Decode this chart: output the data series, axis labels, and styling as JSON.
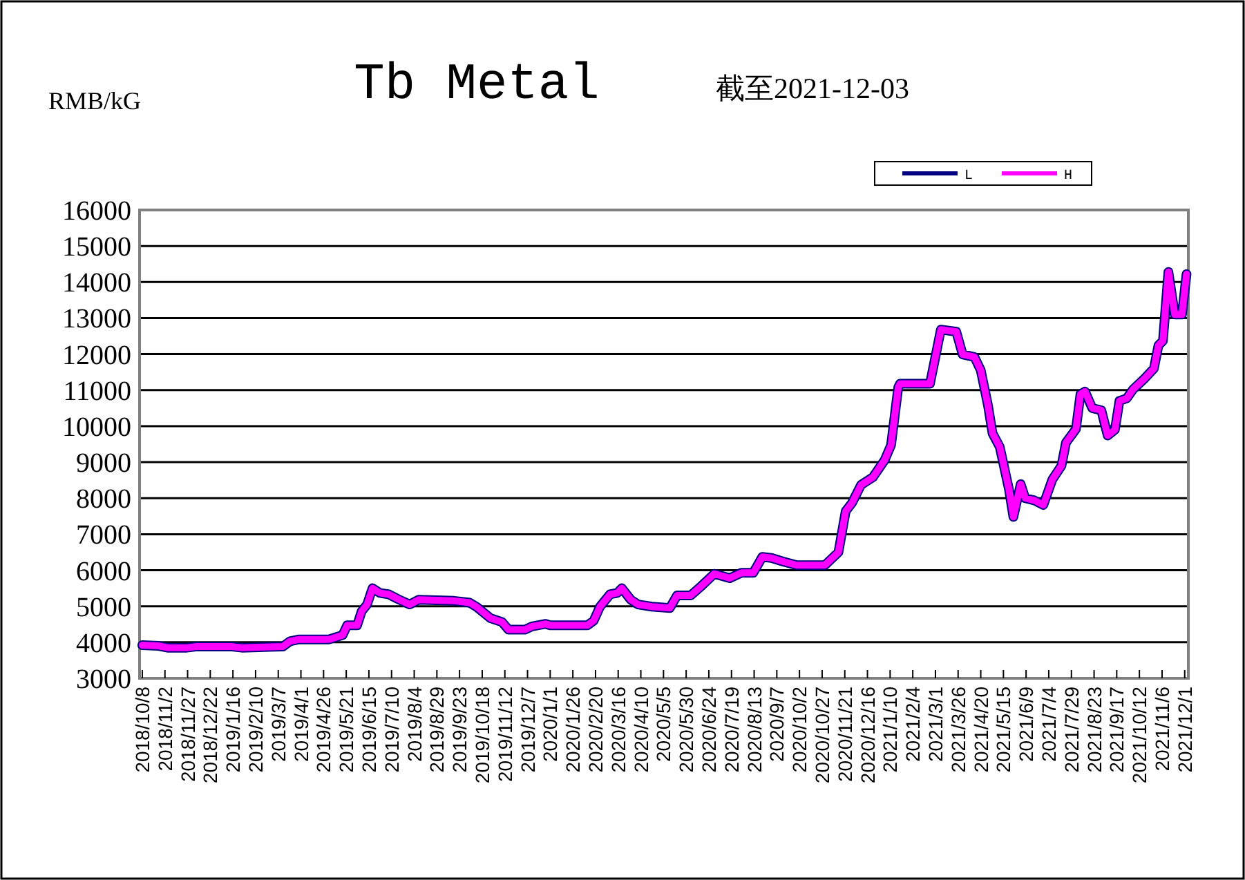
{
  "chart_data": {
    "type": "line",
    "title": "Tb Metal",
    "subtitle": "截至2021-12-03",
    "ylabel": "RMB/kG",
    "xlim": [
      "2018-10-05",
      "2021-12-05"
    ],
    "ylim": [
      3000,
      16000
    ],
    "yticks": [
      3000,
      4000,
      5000,
      6000,
      7000,
      8000,
      9000,
      10000,
      11000,
      12000,
      13000,
      14000,
      15000,
      16000
    ],
    "xticks": [
      {
        "value": "2018-10-08",
        "label": "2018/10/8"
      },
      {
        "value": "2018-11-02",
        "label": "2018/11/2"
      },
      {
        "value": "2018-11-27",
        "label": "2018/11/27"
      },
      {
        "value": "2018-12-22",
        "label": "2018/12/22"
      },
      {
        "value": "2019-01-16",
        "label": "2019/1/16"
      },
      {
        "value": "2019-02-10",
        "label": "2019/2/10"
      },
      {
        "value": "2019-03-07",
        "label": "2019/3/7"
      },
      {
        "value": "2019-04-01",
        "label": "2019/4/1"
      },
      {
        "value": "2019-04-26",
        "label": "2019/4/26"
      },
      {
        "value": "2019-05-21",
        "label": "2019/5/21"
      },
      {
        "value": "2019-06-15",
        "label": "2019/6/15"
      },
      {
        "value": "2019-07-10",
        "label": "2019/7/10"
      },
      {
        "value": "2019-08-04",
        "label": "2019/8/4"
      },
      {
        "value": "2019-08-29",
        "label": "2019/8/29"
      },
      {
        "value": "2019-09-23",
        "label": "2019/9/23"
      },
      {
        "value": "2019-10-18",
        "label": "2019/10/18"
      },
      {
        "value": "2019-11-12",
        "label": "2019/11/12"
      },
      {
        "value": "2019-12-07",
        "label": "2019/12/7"
      },
      {
        "value": "2020-01-01",
        "label": "2020/1/1"
      },
      {
        "value": "2020-01-26",
        "label": "2020/1/26"
      },
      {
        "value": "2020-02-20",
        "label": "2020/2/20"
      },
      {
        "value": "2020-03-16",
        "label": "2020/3/16"
      },
      {
        "value": "2020-04-10",
        "label": "2020/4/10"
      },
      {
        "value": "2020-05-05",
        "label": "2020/5/5"
      },
      {
        "value": "2020-05-30",
        "label": "2020/5/30"
      },
      {
        "value": "2020-06-24",
        "label": "2020/6/24"
      },
      {
        "value": "2020-07-19",
        "label": "2020/7/19"
      },
      {
        "value": "2020-08-13",
        "label": "2020/8/13"
      },
      {
        "value": "2020-09-07",
        "label": "2020/9/7"
      },
      {
        "value": "2020-10-02",
        "label": "2020/10/2"
      },
      {
        "value": "2020-10-27",
        "label": "2020/10/27"
      },
      {
        "value": "2020-11-21",
        "label": "2020/11/21"
      },
      {
        "value": "2020-12-16",
        "label": "2020/12/16"
      },
      {
        "value": "2021-01-10",
        "label": "2021/1/10"
      },
      {
        "value": "2021-02-04",
        "label": "2021/2/4"
      },
      {
        "value": "2021-03-01",
        "label": "2021/3/1"
      },
      {
        "value": "2021-03-26",
        "label": "2021/3/26"
      },
      {
        "value": "2021-04-20",
        "label": "2021/4/20"
      },
      {
        "value": "2021-05-15",
        "label": "2021/5/15"
      },
      {
        "value": "2021-06-09",
        "label": "2021/6/9"
      },
      {
        "value": "2021-07-04",
        "label": "2021/7/4"
      },
      {
        "value": "2021-07-29",
        "label": "2021/7/29"
      },
      {
        "value": "2021-08-23",
        "label": "2021/8/23"
      },
      {
        "value": "2021-09-17",
        "label": "2021/9/17"
      },
      {
        "value": "2021-10-12",
        "label": "2021/10/12"
      },
      {
        "value": "2021-11-06",
        "label": "2021/11/6"
      },
      {
        "value": "2021-12-01",
        "label": "2021/12/1"
      }
    ],
    "x": [
      "2018-10-08",
      "2018-10-26",
      "2018-11-05",
      "2018-11-26",
      "2018-12-06",
      "2019-01-15",
      "2019-01-26",
      "2019-02-25",
      "2019-03-12",
      "2019-03-20",
      "2019-03-30",
      "2019-05-02",
      "2019-05-17",
      "2019-05-22",
      "2019-06-02",
      "2019-06-07",
      "2019-06-13",
      "2019-06-19",
      "2019-06-27",
      "2019-07-07",
      "2019-07-17",
      "2019-07-30",
      "2019-08-09",
      "2019-09-17",
      "2019-10-04",
      "2019-10-12",
      "2019-10-27",
      "2019-11-09",
      "2019-11-16",
      "2019-12-04",
      "2019-12-12",
      "2019-12-27",
      "2020-01-01",
      "2020-02-11",
      "2020-02-18",
      "2020-02-25",
      "2020-03-07",
      "2020-03-15",
      "2020-03-20",
      "2020-03-30",
      "2020-04-07",
      "2020-04-22",
      "2020-05-12",
      "2020-05-20",
      "2020-06-04",
      "2020-06-14",
      "2020-06-30",
      "2020-07-17",
      "2020-07-30",
      "2020-08-12",
      "2020-08-22",
      "2020-09-01",
      "2020-09-14",
      "2020-09-29",
      "2020-10-30",
      "2020-11-14",
      "2020-11-22",
      "2020-11-29",
      "2020-12-09",
      "2020-12-22",
      "2021-01-04",
      "2021-01-11",
      "2021-01-19",
      "2021-01-21",
      "2021-02-23",
      "2021-03-07",
      "2021-03-24",
      "2021-03-31",
      "2021-04-13",
      "2021-04-20",
      "2021-04-28",
      "2021-05-03",
      "2021-05-11",
      "2021-05-21",
      "2021-05-26",
      "2021-06-03",
      "2021-06-08",
      "2021-06-18",
      "2021-06-28",
      "2021-07-08",
      "2021-07-18",
      "2021-07-23",
      "2021-08-03",
      "2021-08-08",
      "2021-08-13",
      "2021-08-21",
      "2021-08-31",
      "2021-09-07",
      "2021-09-15",
      "2021-09-20",
      "2021-09-28",
      "2021-10-05",
      "2021-10-18",
      "2021-10-28",
      "2021-11-02",
      "2021-11-07",
      "2021-11-13",
      "2021-11-20",
      "2021-11-28",
      "2021-12-03"
    ],
    "series": [
      {
        "name": "L",
        "color": "#000080",
        "values": [
          3920,
          3900,
          3850,
          3850,
          3880,
          3880,
          3850,
          3870,
          3880,
          4030,
          4080,
          4080,
          4200,
          4470,
          4470,
          4860,
          5050,
          5500,
          5370,
          5330,
          5200,
          5050,
          5180,
          5150,
          5100,
          4980,
          4670,
          4560,
          4350,
          4350,
          4440,
          4510,
          4470,
          4470,
          4600,
          4990,
          5330,
          5370,
          5500,
          5180,
          5050,
          4990,
          4950,
          5300,
          5300,
          5520,
          5900,
          5780,
          5930,
          5930,
          6370,
          6340,
          6240,
          6140,
          6140,
          6500,
          7640,
          7870,
          8370,
          8580,
          9060,
          9470,
          11080,
          11180,
          11180,
          12680,
          12620,
          11990,
          11920,
          11550,
          10570,
          9800,
          9420,
          8260,
          7480,
          8390,
          8000,
          7940,
          7810,
          8520,
          8900,
          9540,
          9920,
          10890,
          10960,
          10500,
          10440,
          9740,
          9900,
          10700,
          10770,
          11020,
          11330,
          11600,
          12240,
          12370,
          14280,
          13100,
          13100,
          14220
        ]
      },
      {
        "name": "H",
        "color": "#ff00ff",
        "values": [
          3920,
          3900,
          3850,
          3850,
          3880,
          3880,
          3850,
          3870,
          3880,
          4030,
          4080,
          4080,
          4200,
          4470,
          4470,
          4860,
          5050,
          5500,
          5370,
          5330,
          5200,
          5050,
          5180,
          5150,
          5100,
          4980,
          4670,
          4560,
          4350,
          4350,
          4440,
          4510,
          4470,
          4470,
          4600,
          4990,
          5330,
          5370,
          5500,
          5180,
          5050,
          4990,
          4950,
          5300,
          5300,
          5520,
          5900,
          5780,
          5930,
          5930,
          6370,
          6340,
          6240,
          6140,
          6140,
          6500,
          7640,
          7870,
          8370,
          8580,
          9060,
          9470,
          11080,
          11180,
          11180,
          12680,
          12620,
          11990,
          11920,
          11550,
          10570,
          9800,
          9420,
          8260,
          7480,
          8390,
          8000,
          7940,
          7810,
          8520,
          8900,
          9540,
          9920,
          10890,
          10960,
          10500,
          10440,
          9740,
          9900,
          10700,
          10770,
          11020,
          11330,
          11600,
          12240,
          12370,
          14280,
          13100,
          13100,
          14220
        ]
      }
    ],
    "grid": "y",
    "legend": "top right",
    "line_style": "solid"
  }
}
